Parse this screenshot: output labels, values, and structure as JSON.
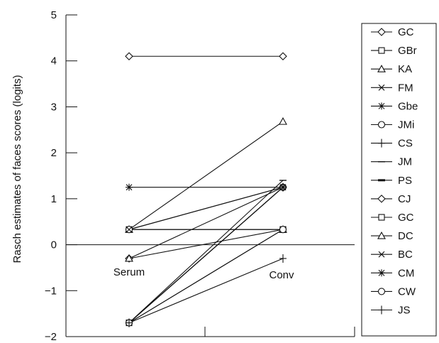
{
  "chart_data": {
    "type": "line",
    "ylabel": "Rasch estimates of faces scores (logits)",
    "ylim": [
      -2,
      5
    ],
    "yticks": [
      5,
      4,
      3,
      2,
      1,
      0,
      -1,
      -2
    ],
    "categories": [
      "Serum",
      "Conv"
    ],
    "grid": false,
    "zero_line": true,
    "legend_position": "right",
    "series": [
      {
        "name": "GC",
        "marker": "diamond",
        "values": [
          4.1,
          4.1
        ]
      },
      {
        "name": "GBr",
        "marker": "square",
        "values": [
          0.33,
          0.33
        ]
      },
      {
        "name": "KA",
        "marker": "triangle",
        "values": [
          0.33,
          2.68
        ]
      },
      {
        "name": "FM",
        "marker": "x",
        "values": [
          0.33,
          0.33
        ]
      },
      {
        "name": "Gbe",
        "marker": "asterisk",
        "values": [
          1.25,
          1.25
        ]
      },
      {
        "name": "JMi",
        "marker": "circle",
        "values": [
          0.33,
          1.25
        ]
      },
      {
        "name": "CS",
        "marker": "plus",
        "values": [
          -1.7,
          1.25
        ]
      },
      {
        "name": "JM",
        "marker": "dash",
        "values": [
          -1.7,
          1.4
        ]
      },
      {
        "name": "PS",
        "marker": "thick-dash",
        "values": [
          -1.7,
          1.25
        ]
      },
      {
        "name": "CJ",
        "marker": "diamond",
        "values": [
          -0.3,
          1.25
        ]
      },
      {
        "name": "GC",
        "marker": "square",
        "values": [
          -1.7,
          0.33
        ]
      },
      {
        "name": "DC",
        "marker": "triangle",
        "values": [
          -0.3,
          0.33
        ]
      },
      {
        "name": "BC",
        "marker": "x",
        "values": [
          0.33,
          1.25
        ]
      },
      {
        "name": "CM",
        "marker": "asterisk",
        "values": [
          -1.7,
          1.25
        ]
      },
      {
        "name": "CW",
        "marker": "circle",
        "values": [
          -1.7,
          0.33
        ]
      },
      {
        "name": "JS",
        "marker": "plus",
        "values": [
          -1.7,
          -0.3
        ]
      }
    ]
  }
}
